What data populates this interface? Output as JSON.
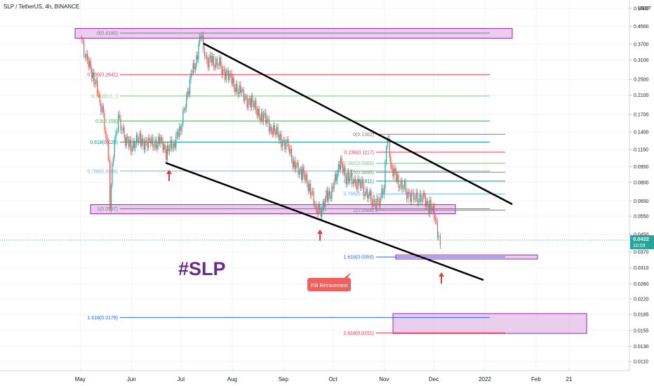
{
  "header": {
    "symbol": "SLP / TetherUS, 4h, BINANCE",
    "currency": "USDT"
  },
  "price_badge": {
    "price": "0.0422",
    "countdown": "10:09"
  },
  "watermark": "#SLP",
  "callout": "FIB Retracement",
  "colors": {
    "candle_up": "#26a69a",
    "candle_down": "#ef5350",
    "zone_fill": "#e1bee7",
    "zone_stroke": "#9c27b0",
    "trendline": "#000000",
    "watermark": "#6a2c8c",
    "callout_bg": "#f0605d",
    "arrow": "#e53935",
    "price_line": "#26a69a"
  },
  "chart_data": {
    "type": "candlestick",
    "title": "SLP / TetherUS, 4h, BINANCE",
    "yscale": "log",
    "ylim": [
      0.0105,
      0.58
    ],
    "y_ticks": [
      "0.5500",
      "0.4500",
      "0.3700",
      "0.3100",
      "0.2500",
      "0.2100",
      "0.1700",
      "0.1400",
      "0.1150",
      "0.0950",
      "0.0800",
      "0.0650",
      "0.0550",
      "0.0450",
      "0.0370",
      "0.0310",
      "0.0260",
      "0.0220",
      "0.0185",
      "0.0155",
      "0.0130",
      "0.0110"
    ],
    "x_ticks": [
      "May",
      "Jun",
      "Jul",
      "Aug",
      "Sep",
      "Oct",
      "Nov",
      "Dec",
      "2022",
      "Feb",
      "21"
    ],
    "x_tick_dates": [
      "2021-05-01",
      "2021-06-01",
      "2021-07-01",
      "2021-08-01",
      "2021-09-01",
      "2021-10-01",
      "2021-11-01",
      "2021-12-01",
      "2022-01-01",
      "2022-02-01",
      "2022-02-21"
    ],
    "xlim": [
      "2021-04-30",
      "2022-03-10"
    ],
    "current_price": 0.0422,
    "series": [
      {
        "name": "SLP/USDT",
        "points": [
          {
            "date": "2021-05-01",
            "close": 0.4
          },
          {
            "date": "2021-05-04",
            "close": 0.32
          },
          {
            "date": "2021-05-08",
            "close": 0.27
          },
          {
            "date": "2021-05-12",
            "close": 0.21
          },
          {
            "date": "2021-05-15",
            "close": 0.17
          },
          {
            "date": "2021-05-18",
            "close": 0.11
          },
          {
            "date": "2021-05-19",
            "close": 0.063
          },
          {
            "date": "2021-05-21",
            "close": 0.11
          },
          {
            "date": "2021-05-24",
            "close": 0.16
          },
          {
            "date": "2021-05-27",
            "close": 0.135
          },
          {
            "date": "2021-05-31",
            "close": 0.12
          },
          {
            "date": "2021-06-06",
            "close": 0.128
          },
          {
            "date": "2021-06-12",
            "close": 0.122
          },
          {
            "date": "2021-06-18",
            "close": 0.126
          },
          {
            "date": "2021-06-22",
            "close": 0.112
          },
          {
            "date": "2021-06-26",
            "close": 0.12
          },
          {
            "date": "2021-06-30",
            "close": 0.14
          },
          {
            "date": "2021-07-03",
            "close": 0.185
          },
          {
            "date": "2021-07-07",
            "close": 0.26
          },
          {
            "date": "2021-07-11",
            "close": 0.33
          },
          {
            "date": "2021-07-13",
            "close": 0.41
          },
          {
            "date": "2021-07-16",
            "close": 0.3
          },
          {
            "date": "2021-07-20",
            "close": 0.31
          },
          {
            "date": "2021-07-25",
            "close": 0.29
          },
          {
            "date": "2021-07-31",
            "close": 0.25
          },
          {
            "date": "2021-08-06",
            "close": 0.215
          },
          {
            "date": "2021-08-12",
            "close": 0.195
          },
          {
            "date": "2021-08-18",
            "close": 0.17
          },
          {
            "date": "2021-08-24",
            "close": 0.15
          },
          {
            "date": "2021-08-30",
            "close": 0.13
          },
          {
            "date": "2021-09-04",
            "close": 0.12
          },
          {
            "date": "2021-09-08",
            "close": 0.095
          },
          {
            "date": "2021-09-12",
            "close": 0.09
          },
          {
            "date": "2021-09-16",
            "close": 0.078
          },
          {
            "date": "2021-09-20",
            "close": 0.062
          },
          {
            "date": "2021-09-23",
            "close": 0.058
          },
          {
            "date": "2021-09-27",
            "close": 0.068
          },
          {
            "date": "2021-10-01",
            "close": 0.075
          },
          {
            "date": "2021-10-05",
            "close": 0.1
          },
          {
            "date": "2021-10-09",
            "close": 0.085
          },
          {
            "date": "2021-10-14",
            "close": 0.08
          },
          {
            "date": "2021-10-19",
            "close": 0.076
          },
          {
            "date": "2021-10-24",
            "close": 0.066
          },
          {
            "date": "2021-10-29",
            "close": 0.064
          },
          {
            "date": "2021-11-01",
            "close": 0.078
          },
          {
            "date": "2021-11-03",
            "close": 0.136
          },
          {
            "date": "2021-11-05",
            "close": 0.095
          },
          {
            "date": "2021-11-09",
            "close": 0.082
          },
          {
            "date": "2021-11-14",
            "close": 0.073
          },
          {
            "date": "2021-11-19",
            "close": 0.068
          },
          {
            "date": "2021-11-24",
            "close": 0.068
          },
          {
            "date": "2021-11-28",
            "close": 0.062
          },
          {
            "date": "2021-12-02",
            "close": 0.055
          },
          {
            "date": "2021-12-04",
            "close": 0.042
          },
          {
            "date": "2021-12-05",
            "close": 0.0422
          }
        ]
      }
    ],
    "fib_sets": [
      {
        "name": "Fib 1",
        "levels": [
          {
            "label": "0(0.4180)",
            "value": 0.418
          },
          {
            "label": "0.236(0.2641)",
            "value": 0.2641
          },
          {
            "label": "0.382(0.2...)",
            "value": 0.208
          },
          {
            "label": "0.5(0.158)",
            "value": 0.158
          },
          {
            "label": "0.618(0.125)",
            "value": 0.125
          },
          {
            "label": "0.786(0.0906)",
            "value": 0.0906
          },
          {
            "label": "1(0.0597)",
            "value": 0.0597
          },
          {
            "label": "1.618(0.0179)",
            "value": 0.0179
          }
        ]
      },
      {
        "name": "Fib 2",
        "levels": [
          {
            "label": "0(0.1362)",
            "value": 0.1362
          },
          {
            "label": "0.236(0.1117)",
            "value": 0.1117
          },
          {
            "label": "0.382(0.0988)",
            "value": 0.0988
          },
          {
            "label": "0.5(0.0895)",
            "value": 0.0895
          },
          {
            "label": "0.618(0.0811)",
            "value": 0.0811
          },
          {
            "label": "0.786(0.0704)",
            "value": 0.0704
          },
          {
            "label": "1(0.0588)",
            "value": 0.0588
          },
          {
            "label": "1.618(0.0350)",
            "value": 0.035
          },
          {
            "label": "2.618(0.0151)",
            "value": 0.0151
          }
        ]
      }
    ]
  }
}
